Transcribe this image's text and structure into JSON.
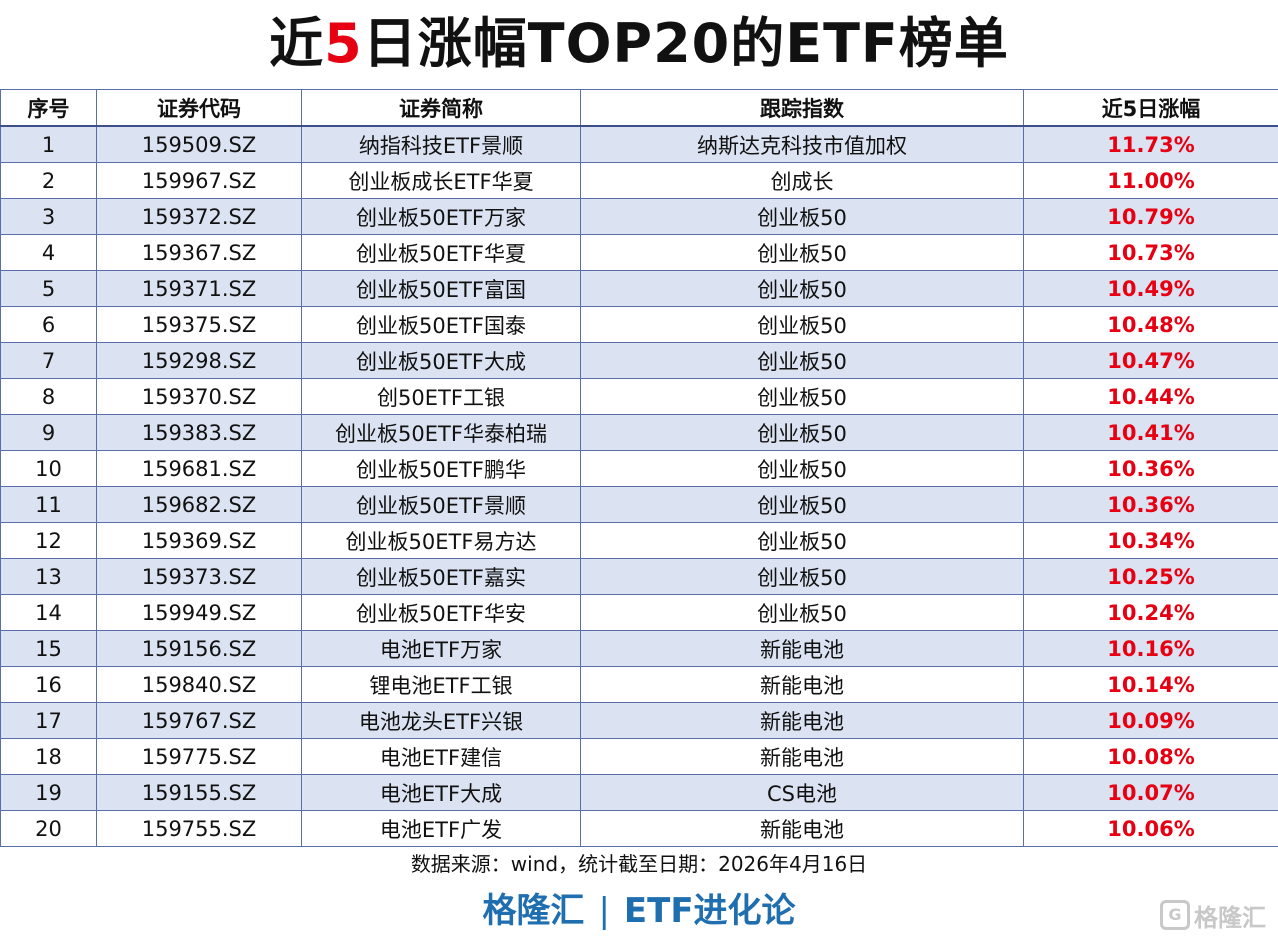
{
  "title": {
    "prefix": "近",
    "highlight": "5",
    "suffix": "日涨幅TOP20的ETF榜单"
  },
  "table": {
    "headers": [
      "序号",
      "证券代码",
      "证券简称",
      "跟踪指数",
      "近5日涨幅"
    ],
    "rows": [
      [
        "1",
        "159509.SZ",
        "纳指科技ETF景顺",
        "纳斯达克科技市值加权",
        "11.73%"
      ],
      [
        "2",
        "159967.SZ",
        "创业板成长ETF华夏",
        "创成长",
        "11.00%"
      ],
      [
        "3",
        "159372.SZ",
        "创业板50ETF万家",
        "创业板50",
        "10.79%"
      ],
      [
        "4",
        "159367.SZ",
        "创业板50ETF华夏",
        "创业板50",
        "10.73%"
      ],
      [
        "5",
        "159371.SZ",
        "创业板50ETF富国",
        "创业板50",
        "10.49%"
      ],
      [
        "6",
        "159375.SZ",
        "创业板50ETF国泰",
        "创业板50",
        "10.48%"
      ],
      [
        "7",
        "159298.SZ",
        "创业板50ETF大成",
        "创业板50",
        "10.47%"
      ],
      [
        "8",
        "159370.SZ",
        "创50ETF工银",
        "创业板50",
        "10.44%"
      ],
      [
        "9",
        "159383.SZ",
        "创业板50ETF华泰柏瑞",
        "创业板50",
        "10.41%"
      ],
      [
        "10",
        "159681.SZ",
        "创业板50ETF鹏华",
        "创业板50",
        "10.36%"
      ],
      [
        "11",
        "159682.SZ",
        "创业板50ETF景顺",
        "创业板50",
        "10.36%"
      ],
      [
        "12",
        "159369.SZ",
        "创业板50ETF易方达",
        "创业板50",
        "10.34%"
      ],
      [
        "13",
        "159373.SZ",
        "创业板50ETF嘉实",
        "创业板50",
        "10.25%"
      ],
      [
        "14",
        "159949.SZ",
        "创业板50ETF华安",
        "创业板50",
        "10.24%"
      ],
      [
        "15",
        "159156.SZ",
        "电池ETF万家",
        "新能电池",
        "10.16%"
      ],
      [
        "16",
        "159840.SZ",
        "锂电池ETF工银",
        "新能电池",
        "10.14%"
      ],
      [
        "17",
        "159767.SZ",
        "电池龙头ETF兴银",
        "新能电池",
        "10.09%"
      ],
      [
        "18",
        "159775.SZ",
        "电池ETF建信",
        "新能电池",
        "10.08%"
      ],
      [
        "19",
        "159155.SZ",
        "电池ETF大成",
        "CS电池",
        "10.07%"
      ],
      [
        "20",
        "159755.SZ",
        "电池ETF广发",
        "新能电池",
        "10.06%"
      ]
    ]
  },
  "footer": {
    "source": "数据来源：wind，统计截至日期：2026年4月16日",
    "brand_left": "格隆汇",
    "brand_sep": "|",
    "brand_right": "ETF进化论"
  },
  "watermark": {
    "icon": "G",
    "text": "格隆汇"
  },
  "colors": {
    "highlight": "#e60012",
    "stripe": "#dbe2f1",
    "border": "#5a6ea8",
    "brand": "#1f6fb0"
  }
}
